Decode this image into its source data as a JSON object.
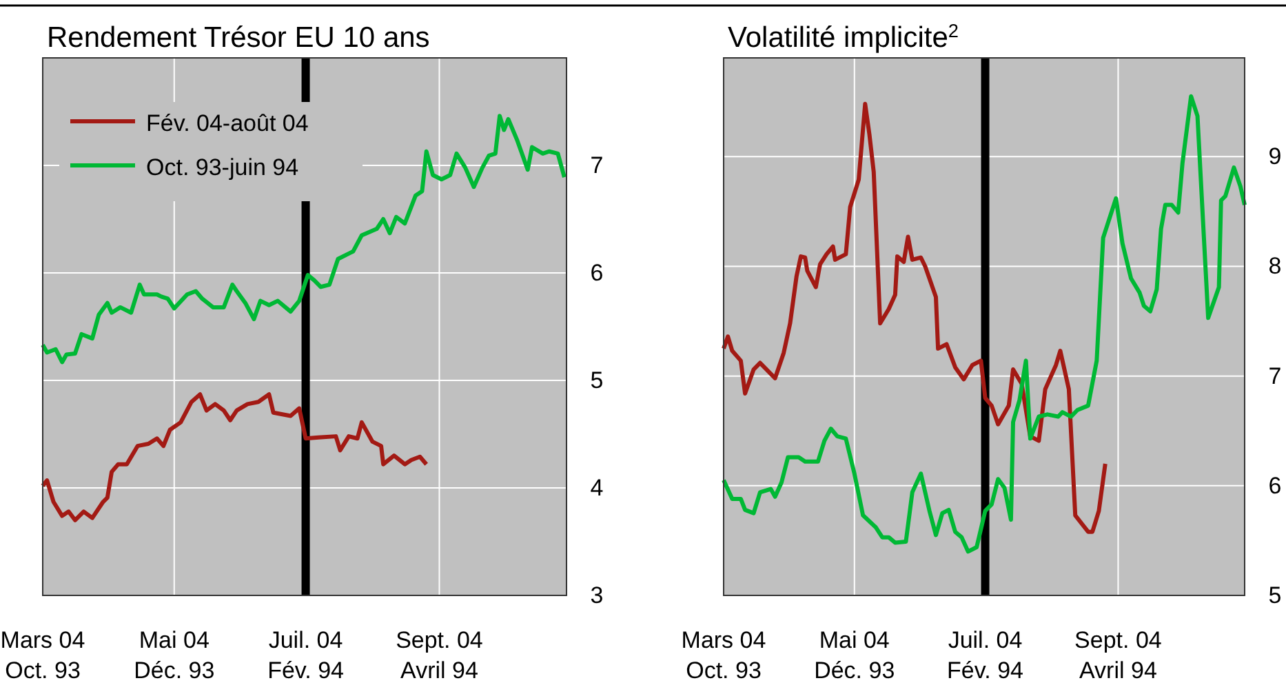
{
  "chart_data": [
    {
      "type": "line",
      "title": "Rendement Trésor EU 10 ans",
      "legend": "top left",
      "grid": true,
      "x": [
        "2004-03-01",
        "2004-03-03",
        "2004-03-07",
        "2004-03-10",
        "2004-03-12",
        "2004-03-16",
        "2004-03-19",
        "2004-03-24",
        "2004-03-27",
        "2004-03-31",
        "2004-04-02",
        "2004-04-06",
        "2004-04-11",
        "2004-04-15",
        "2004-04-17",
        "2004-04-23",
        "2004-04-25",
        "2004-04-28",
        "2004-05-01",
        "2004-05-07",
        "2004-05-11",
        "2004-05-14",
        "2004-05-19",
        "2004-05-24",
        "2004-05-28",
        "2004-05-30",
        "2004-06-03",
        "2004-06-07",
        "2004-06-10",
        "2004-06-14",
        "2004-06-18",
        "2004-06-24",
        "2004-06-28",
        "2004-07-02",
        "2004-07-05",
        "2004-07-08",
        "2004-07-12",
        "2004-07-16",
        "2004-07-23",
        "2004-07-27",
        "2004-08-03",
        "2004-08-06",
        "2004-08-09",
        "2004-08-12",
        "2004-08-16",
        "2004-08-21",
        "2004-08-24",
        "2004-08-26",
        "2004-08-29",
        "2004-09-02",
        "2004-09-06",
        "2004-09-09",
        "2004-09-13",
        "2004-09-17",
        "2004-09-21",
        "2004-09-24",
        "2004-09-27",
        "2004-09-29",
        "2004-10-01",
        "2004-10-03",
        "2004-10-07",
        "2004-10-12",
        "2004-10-14",
        "2004-10-19",
        "2004-10-22",
        "2004-10-26",
        "2004-10-29"
      ],
      "xlim": [
        "2004-03-01",
        "2004-10-30"
      ],
      "xticks": [
        {
          "value": "2004-03-01",
          "label": "Mars 04\nOct. 93"
        },
        {
          "value": "2004-05-01",
          "label": "Mai 04\nDéc. 93"
        },
        {
          "value": "2004-07-01",
          "label": "Juil. 04\nFév. 94"
        },
        {
          "value": "2004-09-01",
          "label": "Sept. 04\nAvril 94"
        }
      ],
      "ylim": [
        3,
        8
      ],
      "yticks": [
        3,
        4,
        5,
        6,
        7,
        {
          "value": 8,
          "label": null
        }
      ],
      "ref_lines": [
        {
          "axis": "x",
          "value": "2004-07-01",
          "color": "#000000"
        }
      ],
      "series": [
        {
          "name": "Fév. 04-août 04",
          "color": "#a31a14",
          "x": [
            "2004-03-01",
            "2004-03-03",
            "2004-03-06",
            "2004-03-10",
            "2004-03-13",
            "2004-03-16",
            "2004-03-20",
            "2004-03-24",
            "2004-03-29",
            "2004-03-31",
            "2004-04-02",
            "2004-04-05",
            "2004-04-09",
            "2004-04-14",
            "2004-04-19",
            "2004-04-23",
            "2004-04-26",
            "2004-04-29",
            "2004-05-04",
            "2004-05-09",
            "2004-05-13",
            "2004-05-16",
            "2004-05-20",
            "2004-05-24",
            "2004-05-27",
            "2004-05-30",
            "2004-06-04",
            "2004-06-09",
            "2004-06-14",
            "2004-06-16",
            "2004-06-24",
            "2004-06-28",
            "2004-07-01",
            "2004-07-07",
            "2004-07-15",
            "2004-07-17",
            "2004-07-21",
            "2004-07-25",
            "2004-07-27",
            "2004-08-01",
            "2004-08-05",
            "2004-08-06",
            "2004-08-11",
            "2004-08-16",
            "2004-08-19",
            "2004-08-23",
            "2004-08-26"
          ],
          "values": [
            4.02,
            4.07,
            3.87,
            3.74,
            3.78,
            3.7,
            3.78,
            3.72,
            3.87,
            3.91,
            4.15,
            4.22,
            4.22,
            4.39,
            4.41,
            4.46,
            4.39,
            4.54,
            4.61,
            4.8,
            4.87,
            4.72,
            4.78,
            4.72,
            4.63,
            4.72,
            4.78,
            4.8,
            4.87,
            4.7,
            4.67,
            4.74,
            4.46,
            4.47,
            4.48,
            4.35,
            4.48,
            4.46,
            4.61,
            4.43,
            4.39,
            4.22,
            4.3,
            4.22,
            4.26,
            4.29,
            4.22
          ]
        },
        {
          "name": "Oct. 93-juin 94",
          "color": "#00b835",
          "values": [
            5.33,
            5.26,
            5.29,
            5.17,
            5.24,
            5.25,
            5.43,
            5.39,
            5.61,
            5.72,
            5.63,
            5.68,
            5.63,
            5.89,
            5.8,
            5.8,
            5.78,
            5.76,
            5.67,
            5.8,
            5.83,
            5.76,
            5.68,
            5.68,
            5.89,
            5.83,
            5.72,
            5.57,
            5.74,
            5.7,
            5.74,
            5.64,
            5.74,
            5.98,
            5.93,
            5.87,
            5.89,
            6.13,
            6.2,
            6.35,
            6.41,
            6.5,
            6.37,
            6.52,
            6.46,
            6.72,
            6.76,
            7.13,
            6.91,
            6.87,
            6.91,
            7.11,
            6.98,
            6.8,
            6.98,
            7.09,
            7.11,
            7.46,
            7.33,
            7.43,
            7.24,
            6.96,
            7.17,
            7.11,
            7.13,
            7.11,
            6.89
          ]
        }
      ]
    },
    {
      "type": "line",
      "title": "Volatilité implicite$^{2}$",
      "grid": true,
      "xlim": [
        "2004-03-01",
        "2004-10-30"
      ],
      "xticks": [
        {
          "value": "2004-03-01",
          "label": "Mars 04\nOct. 93"
        },
        {
          "value": "2004-05-01",
          "label": "Mai 04\nDéc. 93"
        },
        {
          "value": "2004-07-01",
          "label": "Juil. 04\nFév. 94"
        },
        {
          "value": "2004-09-01",
          "label": "Sept. 04\nAvril 94"
        }
      ],
      "ylim": [
        5,
        9.9
      ],
      "yticks": [
        5,
        6,
        7,
        8,
        9
      ],
      "ref_lines": [
        {
          "axis": "x",
          "value": "2004-07-01",
          "color": "#000000"
        }
      ],
      "series": [
        {
          "color": "#a31a14",
          "x": [
            "2004-03-01",
            "2004-03-03",
            "2004-03-05",
            "2004-03-09",
            "2004-03-11",
            "2004-03-15",
            "2004-03-18",
            "2004-03-25",
            "2004-03-29",
            "2004-04-01",
            "2004-04-04",
            "2004-04-06",
            "2004-04-08",
            "2004-04-09",
            "2004-04-13",
            "2004-04-15",
            "2004-04-18",
            "2004-04-21",
            "2004-04-22",
            "2004-04-27",
            "2004-04-29",
            "2004-05-03",
            "2004-05-06",
            "2004-05-08",
            "2004-05-10",
            "2004-05-13",
            "2004-05-17",
            "2004-05-20",
            "2004-05-21",
            "2004-05-24",
            "2004-05-26",
            "2004-05-28",
            "2004-06-01",
            "2004-06-03",
            "2004-06-08",
            "2004-06-09",
            "2004-06-13",
            "2004-06-17",
            "2004-06-21",
            "2004-06-25",
            "2004-06-29",
            "2004-07-01",
            "2004-07-04",
            "2004-07-07",
            "2004-07-12",
            "2004-07-14",
            "2004-07-18",
            "2004-07-22",
            "2004-07-26",
            "2004-07-29",
            "2004-08-03",
            "2004-08-05",
            "2004-08-09",
            "2004-08-12",
            "2004-08-18",
            "2004-08-20",
            "2004-08-23",
            "2004-08-26"
          ],
          "values": [
            7.25,
            7.36,
            7.23,
            7.14,
            6.84,
            7.06,
            7.12,
            6.98,
            7.21,
            7.48,
            7.91,
            8.09,
            8.08,
            7.96,
            7.81,
            8.02,
            8.11,
            8.18,
            8.06,
            8.11,
            8.54,
            8.79,
            9.48,
            9.2,
            8.86,
            7.48,
            7.61,
            7.74,
            8.09,
            8.04,
            8.27,
            8.06,
            8.08,
            8,
            7.72,
            7.25,
            7.29,
            7.08,
            6.97,
            7.1,
            7.14,
            6.8,
            6.73,
            6.56,
            6.73,
            7.06,
            6.93,
            6.45,
            6.41,
            6.88,
            7.1,
            7.23,
            6.88,
            5.73,
            5.58,
            5.58,
            5.77,
            6.2
          ]
        },
        {
          "color": "#00b835",
          "x": [
            "2004-03-01",
            "2004-03-05",
            "2004-03-09",
            "2004-03-11",
            "2004-03-15",
            "2004-03-18",
            "2004-03-23",
            "2004-03-25",
            "2004-03-28",
            "2004-03-31",
            "2004-04-05",
            "2004-04-08",
            "2004-04-14",
            "2004-04-17",
            "2004-04-20",
            "2004-04-23",
            "2004-04-27",
            "2004-05-01",
            "2004-05-05",
            "2004-05-11",
            "2004-05-14",
            "2004-05-17",
            "2004-05-20",
            "2004-05-25",
            "2004-05-28",
            "2004-06-01",
            "2004-06-05",
            "2004-06-08",
            "2004-06-11",
            "2004-06-14",
            "2004-06-17",
            "2004-06-20",
            "2004-06-23",
            "2004-06-27",
            "2004-07-01",
            "2004-07-04",
            "2004-07-07",
            "2004-07-10",
            "2004-07-13",
            "2004-07-14",
            "2004-07-17",
            "2004-07-20",
            "2004-07-22",
            "2004-07-26",
            "2004-07-30",
            "2004-08-04",
            "2004-08-06",
            "2004-08-10",
            "2004-08-13",
            "2004-08-18",
            "2004-08-22",
            "2004-08-25",
            "2004-08-31",
            "2004-09-03",
            "2004-09-07",
            "2004-09-11",
            "2004-09-13",
            "2004-09-16",
            "2004-09-19",
            "2004-09-21",
            "2004-09-23",
            "2004-09-26",
            "2004-09-29",
            "2004-10-01",
            "2004-10-05",
            "2004-10-08",
            "2004-10-11",
            "2004-10-13",
            "2004-10-18",
            "2004-10-19",
            "2004-10-21",
            "2004-10-25",
            "2004-10-28",
            "2004-10-30"
          ],
          "values": [
            6.05,
            5.88,
            5.88,
            5.78,
            5.75,
            5.94,
            5.97,
            5.9,
            6.03,
            6.26,
            6.26,
            6.22,
            6.22,
            6.41,
            6.52,
            6.45,
            6.43,
            6.11,
            5.73,
            5.62,
            5.53,
            5.53,
            5.48,
            5.49,
            5.94,
            6.11,
            5.77,
            5.55,
            5.75,
            5.78,
            5.58,
            5.53,
            5.4,
            5.44,
            5.77,
            5.83,
            6.06,
            5.98,
            5.69,
            6.58,
            6.78,
            7.14,
            6.43,
            6.63,
            6.65,
            6.63,
            6.67,
            6.63,
            6.69,
            6.73,
            7.14,
            8.26,
            8.62,
            8.21,
            7.89,
            7.76,
            7.64,
            7.59,
            7.79,
            8.34,
            8.56,
            8.56,
            8.49,
            8.94,
            9.55,
            9.37,
            8.26,
            7.53,
            7.81,
            8.6,
            8.64,
            8.9,
            8.73,
            8.56
          ]
        }
      ]
    }
  ]
}
